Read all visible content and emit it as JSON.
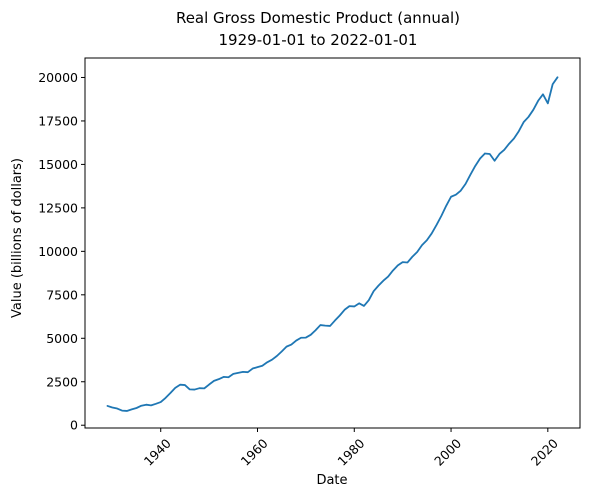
{
  "chart_data": {
    "type": "line",
    "title": "Real Gross Domestic Product (annual)",
    "subtitle": "1929-01-01 to 2022-01-01",
    "xlabel": "Date",
    "ylabel": "Value (billions of dollars)",
    "xlim": [
      1924.35,
      2026.65
    ],
    "ylim": [
      -160,
      21120
    ],
    "x_ticks": [
      1940,
      1960,
      1980,
      2000,
      2020
    ],
    "y_ticks": [
      0,
      2500,
      5000,
      7500,
      10000,
      12500,
      15000,
      17500,
      20000
    ],
    "grid": false,
    "series": [
      {
        "color": "#1f77b4",
        "x": [
          1929,
          1930,
          1931,
          1932,
          1933,
          1934,
          1935,
          1936,
          1937,
          1938,
          1939,
          1940,
          1941,
          1942,
          1943,
          1944,
          1945,
          1946,
          1947,
          1948,
          1949,
          1950,
          1951,
          1952,
          1953,
          1954,
          1955,
          1956,
          1957,
          1958,
          1959,
          1960,
          1961,
          1962,
          1963,
          1964,
          1965,
          1966,
          1967,
          1968,
          1969,
          1970,
          1971,
          1972,
          1973,
          1974,
          1975,
          1976,
          1977,
          1978,
          1979,
          1980,
          1981,
          1982,
          1983,
          1984,
          1985,
          1986,
          1987,
          1988,
          1989,
          1990,
          1991,
          1992,
          1993,
          1994,
          1995,
          1996,
          1997,
          1998,
          1999,
          2000,
          2001,
          2002,
          2003,
          2004,
          2005,
          2006,
          2007,
          2008,
          2009,
          2010,
          2011,
          2012,
          2013,
          2014,
          2015,
          2016,
          2017,
          2018,
          2019,
          2020,
          2021,
          2022
        ],
        "y": [
          1110,
          1020,
          960,
          840,
          820,
          910,
          990,
          1120,
          1180,
          1140,
          1230,
          1330,
          1570,
          1850,
          2150,
          2330,
          2310,
          2060,
          2050,
          2130,
          2120,
          2340,
          2550,
          2650,
          2780,
          2760,
          2950,
          3010,
          3070,
          3050,
          3260,
          3340,
          3420,
          3620,
          3770,
          3980,
          4240,
          4520,
          4640,
          4870,
          5030,
          5040,
          5200,
          5460,
          5760,
          5730,
          5710,
          6020,
          6310,
          6640,
          6850,
          6830,
          7010,
          6860,
          7190,
          7710,
          8030,
          8310,
          8550,
          8900,
          9190,
          9380,
          9360,
          9690,
          9960,
          10360,
          10640,
          11030,
          11520,
          12040,
          12620,
          13140,
          13260,
          13490,
          13880,
          14410,
          14910,
          15340,
          15630,
          15600,
          15210,
          15600,
          15840,
          16190,
          16490,
          16910,
          17430,
          17730,
          18140,
          18660,
          19030,
          18510,
          19610,
          20010
        ]
      }
    ]
  }
}
